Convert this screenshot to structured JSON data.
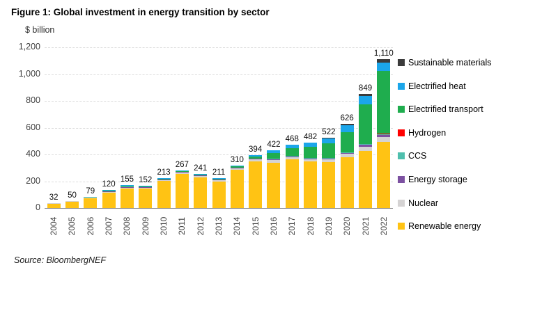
{
  "figure": {
    "title": "Figure 1: Global investment in energy transition by sector",
    "axis_unit": "$ billion",
    "source": "Source: BloombergNEF"
  },
  "chart_data": {
    "type": "bar",
    "stacked": true,
    "title": "Figure 1: Global investment in energy transition by sector",
    "xlabel": "",
    "ylabel": "$ billion",
    "ylim": [
      0,
      1200
    ],
    "y_ticks": [
      "0",
      "200",
      "400",
      "600",
      "800",
      "1,000",
      "1,200"
    ],
    "grid": "horizontal-dashed",
    "legend_position": "right",
    "categories": [
      "2004",
      "2005",
      "2006",
      "2007",
      "2008",
      "2009",
      "2010",
      "2011",
      "2012",
      "2013",
      "2014",
      "2015",
      "2016",
      "2017",
      "2018",
      "2019",
      "2020",
      "2021",
      "2022"
    ],
    "totals": [
      32,
      50,
      79,
      120,
      155,
      152,
      213,
      267,
      241,
      211,
      310,
      394,
      422,
      468,
      482,
      522,
      626,
      849,
      1110
    ],
    "total_labels": [
      "32",
      "50",
      "79",
      "120",
      "155",
      "152",
      "213",
      "267",
      "241",
      "211",
      "310",
      "394",
      "422",
      "468",
      "482",
      "522",
      "626",
      "849",
      "1,110"
    ],
    "series": [
      {
        "name": "Renewable energy",
        "slug": "renewable-energy",
        "color": "#FFC314",
        "values": [
          30,
          47,
          75,
          114,
          148,
          144,
          203,
          255,
          228,
          197,
          288,
          350,
          340,
          363,
          347,
          345,
          380,
          428,
          495
        ]
      },
      {
        "name": "Nuclear",
        "slug": "nuclear",
        "color": "#D5D3D3",
        "values": [
          1,
          2,
          3,
          4,
          5,
          6,
          7,
          8,
          9,
          9,
          10,
          13,
          19,
          17,
          18,
          21,
          24,
          31,
          36
        ]
      },
      {
        "name": "Energy storage",
        "slug": "energy-storage",
        "color": "#7C51A1",
        "values": [
          0.3,
          0.3,
          0.3,
          0.5,
          0.5,
          0.5,
          0.8,
          1,
          1.2,
          1.5,
          1.7,
          2,
          2.5,
          3,
          4,
          5,
          7,
          12.6,
          16
        ]
      },
      {
        "name": "CCS",
        "slug": "ccs",
        "color": "#4FBFAD",
        "values": [
          0.2,
          0.2,
          0.2,
          0.3,
          0.3,
          0.3,
          0.3,
          0.3,
          0.3,
          0.3,
          0.3,
          0.3,
          0.5,
          1,
          1,
          1,
          1,
          2,
          6
        ]
      },
      {
        "name": "Hydrogen",
        "slug": "hydrogen",
        "color": "#FF0000",
        "values": [
          0,
          0,
          0,
          0,
          0,
          0,
          0,
          0,
          0,
          0,
          0,
          0,
          0,
          0,
          0,
          0.1,
          0.4,
          0.4,
          1
        ]
      },
      {
        "name": "Electrified transport",
        "slug": "electrified-transport",
        "color": "#1FAD4E",
        "values": [
          0.2,
          0.2,
          0.2,
          0.5,
          0.5,
          0.5,
          1,
          1.5,
          1.8,
          2,
          6,
          17,
          40,
          57,
          81,
          106,
          151,
          297,
          466
        ]
      },
      {
        "name": "Electrified heat",
        "slug": "electrified-heat",
        "color": "#1BA6EA",
        "values": [
          0.3,
          0.3,
          0.3,
          0.7,
          0.7,
          0.7,
          0.9,
          1.2,
          0.7,
          1.2,
          4,
          11.7,
          20,
          27,
          31,
          38,
          52,
          62,
          64
        ]
      },
      {
        "name": "Sustainable materials",
        "slug": "sustainable-materials",
        "color": "#3B3B3B",
        "values": [
          0,
          0,
          0,
          0,
          0,
          0,
          0,
          0,
          0,
          0,
          0,
          0,
          0,
          0,
          0,
          6,
          10.6,
          16,
          26
        ]
      }
    ],
    "legend": [
      {
        "label": "Sustainable materials",
        "color": "#3B3B3B"
      },
      {
        "label": "Electrified heat",
        "color": "#1BA6EA"
      },
      {
        "label": "Electrified transport",
        "color": "#1FAD4E"
      },
      {
        "label": "Hydrogen",
        "color": "#FF0000"
      },
      {
        "label": "CCS",
        "color": "#4FBFAD"
      },
      {
        "label": "Energy storage",
        "color": "#7C51A1"
      },
      {
        "label": "Nuclear",
        "color": "#D5D3D3"
      },
      {
        "label": "Renewable energy",
        "color": "#FFC314"
      }
    ]
  }
}
